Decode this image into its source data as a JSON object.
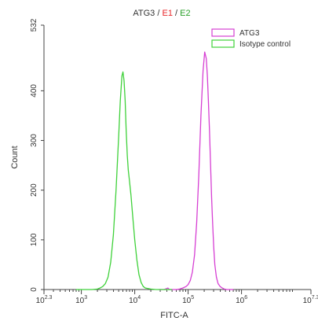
{
  "chart_data": {
    "type": "line",
    "title_parts": [
      {
        "text": "ATG3",
        "color": "#333333"
      },
      {
        "text": " / ",
        "color": "#333333"
      },
      {
        "text": "E1",
        "color": "#e8262a"
      },
      {
        "text": " / ",
        "color": "#333333"
      },
      {
        "text": "E2",
        "color": "#2aa02a"
      }
    ],
    "xlabel": "FITC-A",
    "ylabel": "Count",
    "x_scale": "log",
    "xlim": [
      2.3,
      7.3
    ],
    "ylim": [
      0,
      532
    ],
    "x_ticks": [
      {
        "base": "10",
        "exp": "2.3",
        "value": 2.3
      },
      {
        "base": "10",
        "exp": "3",
        "value": 3
      },
      {
        "base": "10",
        "exp": "4",
        "value": 4
      },
      {
        "base": "10",
        "exp": "5",
        "value": 5
      },
      {
        "base": "10",
        "exp": "6",
        "value": 6
      },
      {
        "base": "10",
        "exp": "7.3",
        "value": 7.3
      }
    ],
    "y_ticks": [
      "0",
      "100",
      "200",
      "300",
      "400",
      "532"
    ],
    "y_tick_values": [
      0,
      100,
      200,
      300,
      400,
      532
    ],
    "legend_position": "top-right",
    "series": [
      {
        "name": "ATG3",
        "color": "#d63fd3",
        "x": [
          4.45,
          4.5,
          4.55,
          4.6,
          4.62,
          4.64,
          4.66,
          4.68,
          4.72,
          4.78,
          4.84,
          4.9,
          4.96,
          5.0,
          5.04,
          5.08,
          5.12,
          5.16,
          5.2,
          5.24,
          5.28,
          5.31,
          5.34,
          5.36,
          5.38,
          5.4,
          5.42,
          5.44,
          5.46,
          5.48,
          5.5,
          5.53,
          5.56,
          5.6,
          5.64,
          5.68,
          5.72,
          5.76,
          5.8,
          5.85
        ],
        "y": [
          0,
          0,
          0,
          2,
          3,
          1,
          0,
          0,
          0,
          0,
          1,
          3,
          6,
          10,
          18,
          35,
          70,
          135,
          230,
          350,
          440,
          478,
          465,
          430,
          380,
          320,
          250,
          185,
          130,
          85,
          50,
          25,
          12,
          6,
          3,
          1,
          0,
          0,
          0,
          0
        ]
      },
      {
        "name": "Isotype control",
        "color": "#3fd13a",
        "x": [
          2.9,
          3.0,
          3.1,
          3.2,
          3.3,
          3.35,
          3.4,
          3.45,
          3.5,
          3.55,
          3.6,
          3.65,
          3.7,
          3.73,
          3.76,
          3.78,
          3.8,
          3.82,
          3.84,
          3.86,
          3.88,
          3.9,
          3.93,
          3.96,
          4.0,
          4.04,
          4.08,
          4.12,
          4.16,
          4.2,
          4.3,
          4.4,
          4.5,
          4.6,
          4.7
        ],
        "y": [
          0,
          0,
          0,
          0,
          1,
          3,
          6,
          12,
          25,
          55,
          110,
          200,
          310,
          380,
          430,
          438,
          420,
          380,
          320,
          270,
          240,
          220,
          190,
          150,
          100,
          60,
          30,
          14,
          6,
          3,
          1,
          0,
          0,
          0,
          0
        ]
      }
    ]
  }
}
